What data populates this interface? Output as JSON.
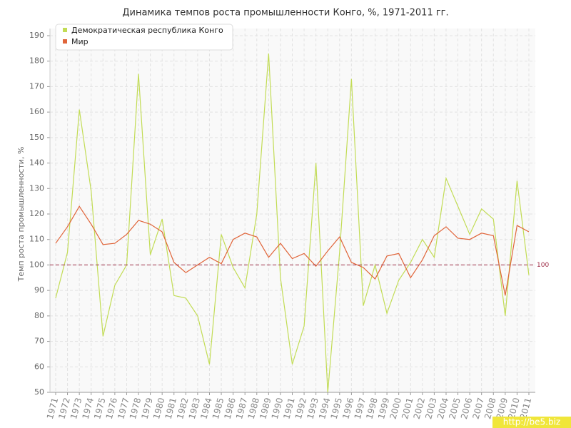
{
  "chart_data": {
    "type": "line",
    "title": "Динамика темпов роста промышленности Конго, %, 1971-2011 гг.",
    "y_label": "Темп роста промышленности, %",
    "categories": [
      "1971",
      "1972",
      "1973",
      "1974",
      "1975",
      "1976",
      "1977",
      "1978",
      "1979",
      "1980",
      "1981",
      "1982",
      "1983",
      "1984",
      "1985",
      "1986",
      "1987",
      "1988",
      "1989",
      "1990",
      "1991",
      "1992",
      "1993",
      "1994",
      "1995",
      "1996",
      "1997",
      "1998",
      "1999",
      "2000",
      "2001",
      "2002",
      "2003",
      "2004",
      "2005",
      "2006",
      "2007",
      "2008",
      "2009",
      "2010",
      "2011"
    ],
    "series": [
      {
        "name": "Демократическая республика Конго",
        "color": "#c2dc55",
        "values": [
          87,
          105,
          161,
          129,
          72,
          92,
          100,
          175,
          104,
          118,
          88,
          87,
          80,
          61,
          112,
          99,
          91,
          120,
          183,
          95,
          61,
          76,
          140,
          50,
          105,
          173,
          84,
          100,
          81,
          94,
          101,
          110,
          103,
          134,
          123,
          112,
          122,
          118,
          80,
          133,
          96
        ]
      },
      {
        "name": "Мир",
        "color": "#e0653a",
        "values": [
          108.5,
          115,
          123,
          116,
          108,
          108.5,
          112,
          117.5,
          116,
          113,
          101,
          97,
          100,
          103,
          100.5,
          110,
          112.5,
          111,
          103,
          108.5,
          102.5,
          104.5,
          99.5,
          105.5,
          111,
          101,
          99,
          94.5,
          103.5,
          104.5,
          95,
          102,
          111.5,
          115,
          110.5,
          110,
          112.5,
          111.5,
          88,
          115.5,
          113
        ]
      }
    ],
    "reference_line": 100,
    "ylim": [
      50,
      190
    ],
    "yticks": [
      50,
      60,
      70,
      80,
      90,
      100,
      110,
      120,
      130,
      140,
      150,
      160,
      170,
      180,
      190
    ],
    "grid": true,
    "legend": "top-left",
    "watermark": "http://be5.biz"
  }
}
